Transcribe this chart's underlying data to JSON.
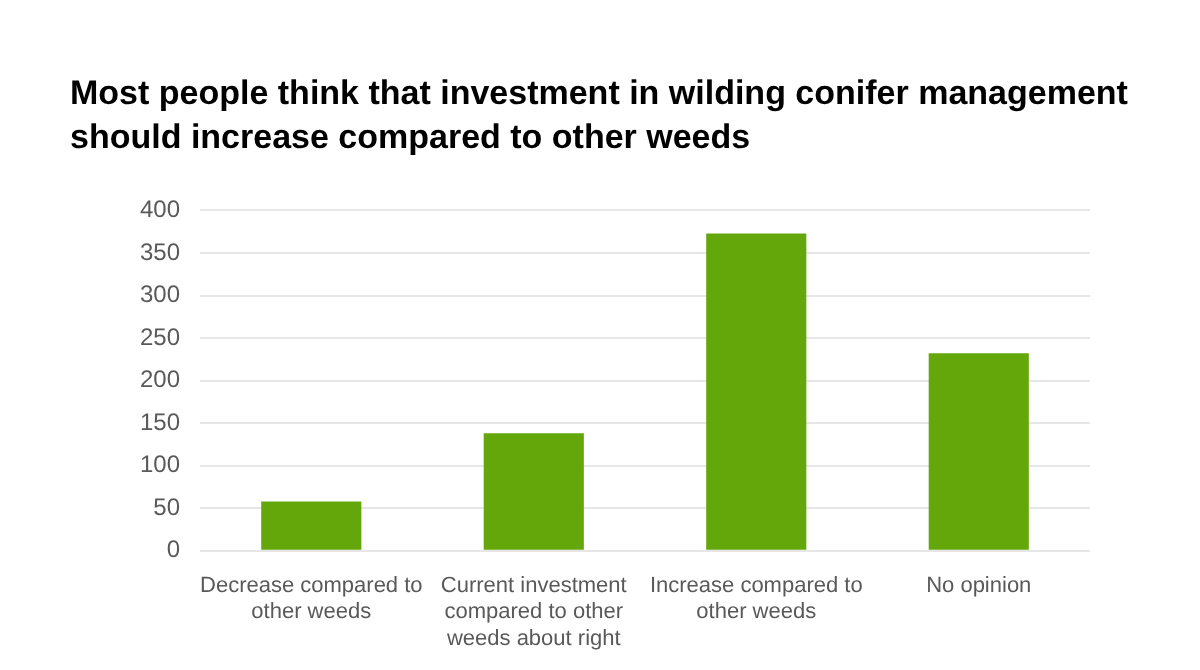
{
  "chart_data": {
    "type": "bar",
    "title": "Most people think that investment in wilding conifer management should increase compared to other weeds",
    "categories": [
      "Decrease compared to other weeds",
      "Current investment compared to other weeds about right",
      "Increase compared to other weeds",
      "No opinion"
    ],
    "values": [
      58,
      138,
      373,
      232
    ],
    "color": "#63a70a",
    "ylim": [
      0,
      400
    ],
    "yticks": [
      0,
      50,
      100,
      150,
      200,
      250,
      300,
      350,
      400
    ],
    "grid": "y"
  }
}
